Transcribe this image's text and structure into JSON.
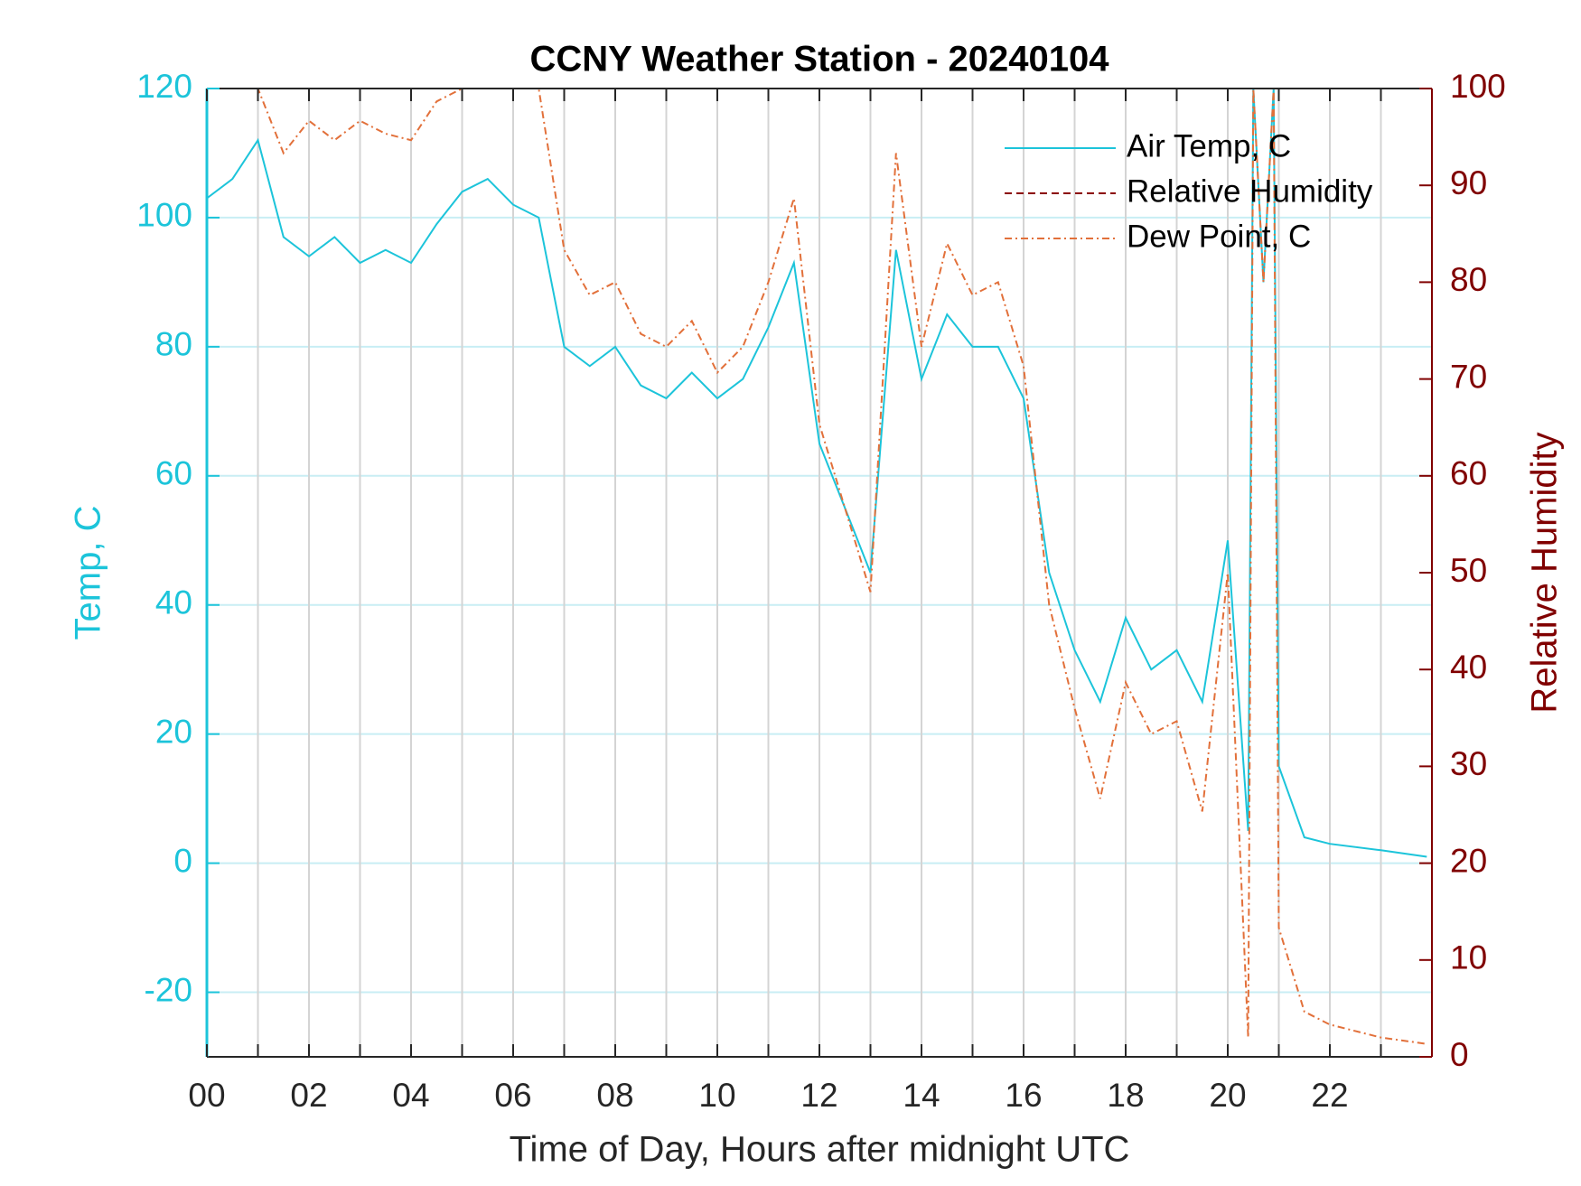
{
  "chart_data": {
    "type": "line",
    "title": "CCNY Weather Station - 20240104",
    "xlabel": "Time of Day, Hours after midnight UTC",
    "ylabel": "Temp, C",
    "y2label": "Relative Humidity",
    "xlim": [
      0,
      24
    ],
    "xticks": [
      {
        "value": 0,
        "label": "00"
      },
      {
        "value": 2,
        "label": "02"
      },
      {
        "value": 4,
        "label": "04"
      },
      {
        "value": 6,
        "label": "06"
      },
      {
        "value": 8,
        "label": "08"
      },
      {
        "value": 10,
        "label": "10"
      },
      {
        "value": 12,
        "label": "12"
      },
      {
        "value": 14,
        "label": "14"
      },
      {
        "value": 16,
        "label": "16"
      },
      {
        "value": 18,
        "label": "18"
      },
      {
        "value": 20,
        "label": "20"
      },
      {
        "value": 22,
        "label": "22"
      }
    ],
    "xminorticks": [
      1,
      3,
      5,
      7,
      9,
      11,
      13,
      15,
      17,
      19,
      21,
      23
    ],
    "ylim": [
      -30,
      120
    ],
    "yticks": [
      -20,
      0,
      20,
      40,
      60,
      80,
      100,
      120
    ],
    "y2lim": [
      0,
      100
    ],
    "y2ticks": [
      0,
      10,
      20,
      30,
      40,
      50,
      60,
      70,
      80,
      90,
      100
    ],
    "ycolor": "#1cc4da",
    "y2color": "#800000",
    "grid": true,
    "legend": "upper right",
    "x": [
      0,
      0.5,
      1,
      1.5,
      2,
      2.5,
      3,
      3.5,
      4,
      4.5,
      5,
      5.5,
      6,
      6.5,
      7,
      7.5,
      8,
      8.5,
      9,
      9.5,
      10,
      10.5,
      11,
      11.5,
      12,
      12.5,
      13,
      13.5,
      14,
      14.5,
      15,
      15.5,
      16,
      16.5,
      17,
      17.5,
      18,
      18.5,
      19,
      19.5,
      20,
      20.4,
      20.5,
      20.7,
      20.9,
      21,
      21.5,
      22,
      23,
      23.9
    ],
    "series": [
      {
        "name": "Air Temp, C",
        "color": "#1cc4da",
        "dash": "solid",
        "axis": "y",
        "values": [
          103,
          106,
          112,
          97,
          94,
          97,
          93,
          95,
          93,
          99,
          104,
          106,
          102,
          100,
          80,
          77,
          80,
          74,
          72,
          76,
          72,
          75,
          83,
          93,
          65,
          55,
          45,
          95,
          75,
          85,
          80,
          80,
          72,
          45,
          33,
          25,
          38,
          30,
          33,
          25,
          50,
          5,
          120,
          90,
          120,
          15,
          4,
          3,
          2,
          1
        ]
      },
      {
        "name": "Relative Humidity",
        "color": "#8b0000",
        "dash": "dashed",
        "axis": "y2",
        "values": [
          null,
          null,
          null,
          null,
          null,
          null,
          null,
          null,
          null,
          null,
          null,
          null,
          null,
          null,
          null,
          null,
          null,
          null,
          null,
          null,
          null,
          null,
          null,
          null,
          null,
          null,
          null,
          null,
          null,
          null,
          null,
          null,
          null,
          null,
          null,
          null,
          null,
          null,
          null,
          null,
          null,
          null,
          null,
          null,
          null,
          null,
          null,
          null,
          null,
          null
        ]
      },
      {
        "name": "Dew Point, C",
        "color": "#e2703a",
        "dash": "dashdot",
        "axis": "y",
        "values": [
          120,
          120,
          120,
          110,
          115,
          112,
          115,
          113,
          112,
          118,
          120,
          120,
          120,
          120,
          95,
          88,
          90,
          82,
          80,
          84,
          76,
          80,
          90,
          103,
          68,
          55,
          42,
          110,
          80,
          96,
          88,
          90,
          77,
          40,
          24,
          10,
          28,
          20,
          22,
          8,
          45,
          -27,
          120,
          90,
          120,
          -10,
          -23,
          -25,
          -27,
          -28
        ]
      }
    ]
  }
}
